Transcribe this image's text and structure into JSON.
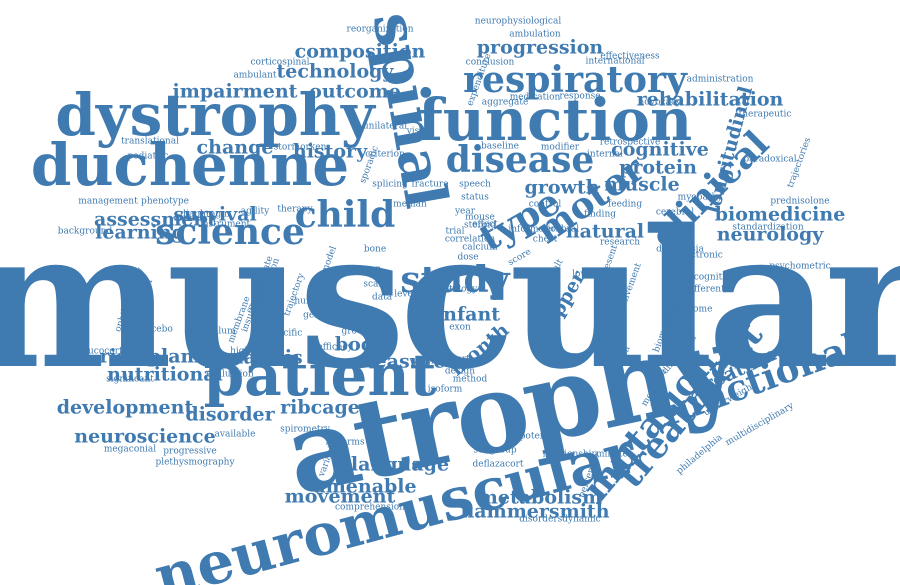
{
  "cloud": {
    "color": "#3f7ab0",
    "words": [
      {
        "text": "muscular",
        "size": "xxl",
        "rotation": 0
      },
      {
        "text": "atrophy",
        "size": "xl",
        "rotation": -12
      },
      {
        "text": "dystrophy",
        "size": "l",
        "rotation": 0
      },
      {
        "text": "duchenne",
        "size": "l",
        "rotation": 0
      },
      {
        "text": "spinal",
        "size": "l",
        "rotation": 80
      },
      {
        "text": "function",
        "size": "l",
        "rotation": 0
      },
      {
        "text": "neuromuscular",
        "size": "l",
        "rotation": -15
      },
      {
        "text": "patient",
        "size": "l",
        "rotation": 0
      },
      {
        "text": "respiratory",
        "size": "m",
        "rotation": 0
      },
      {
        "text": "motor",
        "size": "m",
        "rotation": -35
      },
      {
        "text": "type",
        "size": "m",
        "rotation": -30
      },
      {
        "text": "disease",
        "size": "m",
        "rotation": 0
      },
      {
        "text": "child",
        "size": "m",
        "rotation": 0
      },
      {
        "text": "science",
        "size": "m",
        "rotation": 0
      },
      {
        "text": "clinical",
        "size": "m",
        "rotation": -45
      },
      {
        "text": "mutation",
        "size": "m",
        "rotation": -50
      },
      {
        "text": "treatment",
        "size": "m",
        "rotation": -50
      },
      {
        "text": "functional",
        "size": "m",
        "rotation": -20
      },
      {
        "text": "study",
        "size": "m",
        "rotation": 0
      },
      {
        "text": "composition",
        "size": "s",
        "rotation": 0
      },
      {
        "text": "technology",
        "size": "s",
        "rotation": 0
      },
      {
        "text": "progression",
        "size": "s",
        "rotation": 0
      },
      {
        "text": "impairment",
        "size": "s",
        "rotation": 0
      },
      {
        "text": "outcome",
        "size": "s",
        "rotation": 0
      },
      {
        "text": "change",
        "size": "s",
        "rotation": 0
      },
      {
        "text": "history",
        "size": "s",
        "rotation": 0
      },
      {
        "text": "assessment",
        "size": "s",
        "rotation": 0
      },
      {
        "text": "survival",
        "size": "s",
        "rotation": 0
      },
      {
        "text": "learning",
        "size": "s",
        "rotation": 0
      },
      {
        "text": "cognitive",
        "size": "s",
        "rotation": 0
      },
      {
        "text": "protein",
        "size": "s",
        "rotation": 0
      },
      {
        "text": "muscle",
        "size": "s",
        "rotation": 0
      },
      {
        "text": "growth",
        "size": "s",
        "rotation": 0
      },
      {
        "text": "natural",
        "size": "s",
        "rotation": 0
      },
      {
        "text": "neurology",
        "size": "s",
        "rotation": 0
      },
      {
        "text": "biomedicine",
        "size": "s",
        "rotation": 0
      },
      {
        "text": "longitudinal",
        "size": "s",
        "rotation": -75
      },
      {
        "text": "rehabilitation",
        "size": "s",
        "rotation": 0
      },
      {
        "text": "risdiplam",
        "size": "s",
        "rotation": 0
      },
      {
        "text": "nutritional",
        "size": "s",
        "rotation": 0
      },
      {
        "text": "analysis",
        "size": "s",
        "rotation": 0
      },
      {
        "text": "development",
        "size": "s",
        "rotation": 0
      },
      {
        "text": "disorder",
        "size": "s",
        "rotation": 0
      },
      {
        "text": "neuroscience",
        "size": "s",
        "rotation": 0
      },
      {
        "text": "body",
        "size": "s",
        "rotation": 0
      },
      {
        "text": "measure",
        "size": "s",
        "rotation": 0
      },
      {
        "text": "month",
        "size": "s",
        "rotation": -40
      },
      {
        "text": "infant",
        "size": "s",
        "rotation": 0
      },
      {
        "text": "upper",
        "size": "s",
        "rotation": -60
      },
      {
        "text": "breathing",
        "size": "s",
        "rotation": -25
      },
      {
        "text": "language",
        "size": "s",
        "rotation": 0
      },
      {
        "text": "amenable",
        "size": "s",
        "rotation": 0
      },
      {
        "text": "ribcage",
        "size": "s",
        "rotation": 0
      },
      {
        "text": "metabolism",
        "size": "s",
        "rotation": 0
      },
      {
        "text": "hammersmith",
        "size": "s",
        "rotation": 0
      },
      {
        "text": "movement",
        "size": "s",
        "rotation": 0
      },
      {
        "text": "reorganization",
        "size": "xs",
        "rotation": 0
      },
      {
        "text": "neurophysiological",
        "size": "xs",
        "rotation": 0
      },
      {
        "text": "ambulation",
        "size": "xs",
        "rotation": 0
      },
      {
        "text": "corticospinal",
        "size": "xs",
        "rotation": 0
      },
      {
        "text": "ambulant",
        "size": "xs",
        "rotation": 0
      },
      {
        "text": "effectiveness",
        "size": "xs",
        "rotation": 0
      },
      {
        "text": "conclusion",
        "size": "xs",
        "rotation": 0
      },
      {
        "text": "response",
        "size": "xs",
        "rotation": 0
      },
      {
        "text": "translational",
        "size": "xs",
        "rotation": 0
      },
      {
        "text": "pediatric",
        "size": "xs",
        "rotation": 0
      },
      {
        "text": "stormorken",
        "size": "xs",
        "rotation": 0
      },
      {
        "text": "criterion",
        "size": "xs",
        "rotation": 0
      },
      {
        "text": "baseline",
        "size": "xs",
        "rotation": 0
      },
      {
        "text": "modifier",
        "size": "xs",
        "rotation": 0
      },
      {
        "text": "internal",
        "size": "xs",
        "rotation": 0
      },
      {
        "text": "speech",
        "size": "xs",
        "rotation": 0
      },
      {
        "text": "status",
        "size": "xs",
        "rotation": 0
      },
      {
        "text": "year",
        "size": "xs",
        "rotation": 0
      },
      {
        "text": "dose",
        "size": "xs",
        "rotation": 0
      },
      {
        "text": "control",
        "size": "xs",
        "rotation": 0
      },
      {
        "text": "trial",
        "size": "xs",
        "rotation": 0
      },
      {
        "text": "score",
        "size": "xs",
        "rotation": -30
      },
      {
        "text": "therapy",
        "size": "xs",
        "rotation": 0
      },
      {
        "text": "median",
        "size": "xs",
        "rotation": 0
      },
      {
        "text": "management",
        "size": "xs",
        "rotation": 0
      },
      {
        "text": "phenotype",
        "size": "xs",
        "rotation": 0
      },
      {
        "text": "background",
        "size": "xs",
        "rotation": 0
      },
      {
        "text": "cerebral",
        "size": "xs",
        "rotation": 0
      },
      {
        "text": "myopathy",
        "size": "xs",
        "rotation": 0
      },
      {
        "text": "trajectories",
        "size": "xs",
        "rotation": -70
      },
      {
        "text": "prednisolone",
        "size": "xs",
        "rotation": 0
      },
      {
        "text": "research",
        "size": "xs",
        "rotation": 0
      },
      {
        "text": "feeding",
        "size": "xs",
        "rotation": 0
      },
      {
        "text": "finding",
        "size": "xs",
        "rotation": 0
      },
      {
        "text": "different",
        "size": "xs",
        "rotation": 0
      },
      {
        "text": "predictive",
        "size": "xs",
        "rotation": -70
      },
      {
        "text": "biomarker",
        "size": "xs",
        "rotation": -70
      },
      {
        "text": "present",
        "size": "xs",
        "rotation": -70
      },
      {
        "text": "difficulties",
        "size": "xs",
        "rotation": -50
      },
      {
        "text": "medicine",
        "size": "xs",
        "rotation": -60
      },
      {
        "text": "expression",
        "size": "xs",
        "rotation": -70
      },
      {
        "text": "philadelphia",
        "size": "xs",
        "rotation": -40
      },
      {
        "text": "result",
        "size": "xs",
        "rotation": -60
      },
      {
        "text": "pattern",
        "size": "xs",
        "rotation": 0
      },
      {
        "text": "cohort",
        "size": "xs",
        "rotation": 0
      },
      {
        "text": "method",
        "size": "xs",
        "rotation": 0
      },
      {
        "text": "isoform",
        "size": "xs",
        "rotation": 0
      },
      {
        "text": "design",
        "size": "xs",
        "rotation": 0
      },
      {
        "text": "exon",
        "size": "xs",
        "rotation": 0
      },
      {
        "text": "bone",
        "size": "xs",
        "rotation": 0
      },
      {
        "text": "neuron",
        "size": "xs",
        "rotation": 0
      },
      {
        "text": "scale",
        "size": "xs",
        "rotation": 0
      },
      {
        "text": "data",
        "size": "xs",
        "rotation": 0
      },
      {
        "text": "human",
        "size": "xs",
        "rotation": 0
      },
      {
        "text": "genetic",
        "size": "xs",
        "rotation": 0
      },
      {
        "text": "safety",
        "size": "xs",
        "rotation": 0
      },
      {
        "text": "group",
        "size": "xs",
        "rotation": 0
      },
      {
        "text": "significant",
        "size": "xs",
        "rotation": 0
      },
      {
        "text": "evaluation",
        "size": "xs",
        "rotation": 0
      },
      {
        "text": "available",
        "size": "xs",
        "rotation": 0
      },
      {
        "text": "progressive",
        "size": "xs",
        "rotation": 0
      },
      {
        "text": "plethysmography",
        "size": "xs",
        "rotation": 0
      },
      {
        "text": "spirometry",
        "size": "xs",
        "rotation": 0
      },
      {
        "text": "isoforms",
        "size": "xs",
        "rotation": 0
      },
      {
        "text": "comprehension",
        "size": "xs",
        "rotation": 0
      },
      {
        "text": "disordersdynamic",
        "size": "xs",
        "rotation": 0
      },
      {
        "text": "potential",
        "size": "xs",
        "rotation": 0
      },
      {
        "text": "subgroup",
        "size": "xs",
        "rotation": 0
      },
      {
        "text": "deflazacort",
        "size": "xs",
        "rotation": 0
      },
      {
        "text": "glucocorticoid",
        "size": "xs",
        "rotation": 0
      },
      {
        "text": "megaconial",
        "size": "xs",
        "rotation": 0
      },
      {
        "text": "administration",
        "size": "xs",
        "rotation": 0
      },
      {
        "text": "advocacy",
        "size": "xs",
        "rotation": 0
      },
      {
        "text": "aggregate",
        "size": "xs",
        "rotation": 0
      },
      {
        "text": "medication",
        "size": "xs",
        "rotation": 0
      },
      {
        "text": "international",
        "size": "xs",
        "rotation": 0
      },
      {
        "text": "therapeutic",
        "size": "xs",
        "rotation": 0
      },
      {
        "text": "paradoxical",
        "size": "xs",
        "rotation": 0
      },
      {
        "text": "psychometric",
        "size": "xs",
        "rotation": 0
      },
      {
        "text": "standardization",
        "size": "xs",
        "rotation": 0
      },
      {
        "text": "dyskinesia",
        "size": "xs",
        "rotation": 0
      },
      {
        "text": "electronic",
        "size": "xs",
        "rotation": 0
      },
      {
        "text": "underweight",
        "size": "xs",
        "rotation": -30
      },
      {
        "text": "multidisciplinary",
        "size": "xs",
        "rotation": -30
      },
      {
        "text": "retrospective",
        "size": "xs",
        "rotation": 0
      },
      {
        "text": "cognition",
        "size": "xs",
        "rotation": 0
      },
      {
        "text": "syndrome",
        "size": "xs",
        "rotation": 0
      },
      {
        "text": "involvement",
        "size": "xs",
        "rotation": -70
      },
      {
        "text": "general",
        "size": "xs",
        "rotation": -70
      },
      {
        "text": "mouse",
        "size": "xs",
        "rotation": 0
      },
      {
        "text": "steroid",
        "size": "xs",
        "rotation": 0
      },
      {
        "text": "fracture",
        "size": "xs",
        "rotation": 0
      },
      {
        "text": "splicing",
        "size": "xs",
        "rotation": 0
      },
      {
        "text": "sporadic",
        "size": "xs",
        "rotation": -70
      },
      {
        "text": "unilateral",
        "size": "xs",
        "rotation": 0
      },
      {
        "text": "visual",
        "size": "xs",
        "rotation": 0
      },
      {
        "text": "weight",
        "size": "xs",
        "rotation": 0
      },
      {
        "text": "increase",
        "size": "xs",
        "rotation": -80
      },
      {
        "text": "level",
        "size": "xs",
        "rotation": 0
      },
      {
        "text": "calcium",
        "size": "xs",
        "rotation": 0
      },
      {
        "text": "lower",
        "size": "xs",
        "rotation": 0
      },
      {
        "text": "chest",
        "size": "xs",
        "rotation": 0
      },
      {
        "text": "effect",
        "size": "xs",
        "rotation": 0
      },
      {
        "text": "model",
        "size": "xs",
        "rotation": -70
      },
      {
        "text": "appropriate",
        "size": "xs",
        "rotation": -70
      },
      {
        "text": "insufficiency",
        "size": "xs",
        "rotation": -70
      },
      {
        "text": "interpretation",
        "size": "xs",
        "rotation": -70
      },
      {
        "text": "membrane",
        "size": "xs",
        "rotation": -70
      },
      {
        "text": "validation",
        "size": "xs",
        "rotation": -70
      },
      {
        "text": "trajectory",
        "size": "xs",
        "rotation": -70
      },
      {
        "text": "agility",
        "size": "xs",
        "rotation": 0
      },
      {
        "text": "instrument",
        "size": "xs",
        "rotation": 0
      },
      {
        "text": "ophthalmology",
        "size": "xs",
        "rotation": -70
      },
      {
        "text": "diaphragm",
        "size": "xs",
        "rotation": 0
      },
      {
        "text": "cerebellum",
        "size": "xs",
        "rotation": 0
      },
      {
        "text": "bmi",
        "size": "xs",
        "rotation": 0
      },
      {
        "text": "specific",
        "size": "xs",
        "rotation": 0
      },
      {
        "text": "placebo",
        "size": "xs",
        "rotation": 0
      },
      {
        "text": "efficacy",
        "size": "xs",
        "rotation": 0
      },
      {
        "text": "percentile",
        "size": "xs",
        "rotation": -70
      },
      {
        "text": "minute",
        "size": "xs",
        "rotation": 0
      },
      {
        "text": "relationship",
        "size": "xs",
        "rotation": 0
      },
      {
        "text": "expenditure",
        "size": "xs",
        "rotation": -70
      },
      {
        "text": "variability",
        "size": "xs",
        "rotation": -70
      },
      {
        "text": "information",
        "size": "xs",
        "rotation": 0
      },
      {
        "text": "correlation",
        "size": "xs",
        "rotation": 0
      },
      {
        "text": "cerebral",
        "size": "xs",
        "rotation": 0
      },
      {
        "text": "young",
        "size": "xs",
        "rotation": 0
      },
      {
        "text": "higher",
        "size": "xs",
        "rotation": 0
      },
      {
        "text": "tract",
        "size": "xs",
        "rotation": 0
      },
      {
        "text": "gerontology",
        "size": "xs",
        "rotation": 0
      }
    ]
  }
}
